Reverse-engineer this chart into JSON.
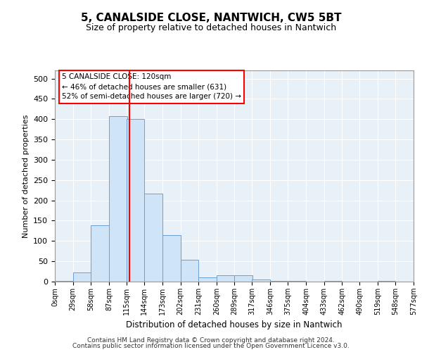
{
  "title": "5, CANALSIDE CLOSE, NANTWICH, CW5 5BT",
  "subtitle": "Size of property relative to detached houses in Nantwich",
  "xlabel": "Distribution of detached houses by size in Nantwich",
  "ylabel": "Number of detached properties",
  "bar_color": "#d0e4f7",
  "bar_edge_color": "#6b9fd4",
  "background_color": "#e8f0f8",
  "bin_edges": [
    0,
    29,
    58,
    87,
    115,
    144,
    173,
    202,
    231,
    260,
    289,
    317,
    346,
    375,
    404,
    433,
    462,
    490,
    519,
    548,
    577
  ],
  "bin_labels": [
    "0sqm",
    "29sqm",
    "58sqm",
    "87sqm",
    "115sqm",
    "144sqm",
    "173sqm",
    "202sqm",
    "231sqm",
    "260sqm",
    "289sqm",
    "317sqm",
    "346sqm",
    "375sqm",
    "404sqm",
    "433sqm",
    "462sqm",
    "490sqm",
    "519sqm",
    "548sqm",
    "577sqm"
  ],
  "counts": [
    2,
    22,
    138,
    408,
    400,
    217,
    115,
    53,
    10,
    15,
    15,
    5,
    1,
    1,
    0,
    2,
    0,
    0,
    2,
    0,
    1
  ],
  "vline_x": 120,
  "annotation_text": "5 CANALSIDE CLOSE: 120sqm\n← 46% of detached houses are smaller (631)\n52% of semi-detached houses are larger (720) →",
  "ylim": [
    0,
    520
  ],
  "yticks": [
    0,
    50,
    100,
    150,
    200,
    250,
    300,
    350,
    400,
    450,
    500
  ],
  "footer_line1": "Contains HM Land Registry data © Crown copyright and database right 2024.",
  "footer_line2": "Contains public sector information licensed under the Open Government Licence v3.0."
}
